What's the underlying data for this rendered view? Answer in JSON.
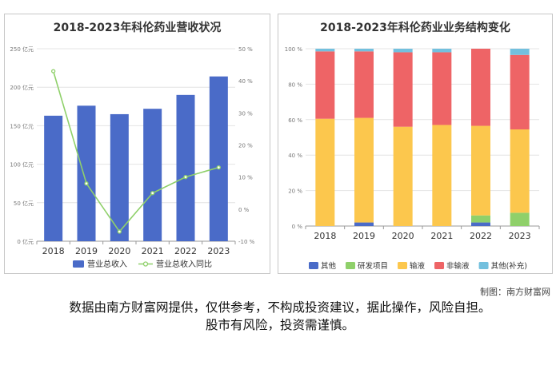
{
  "charts": {
    "revenue": {
      "title": "2018-2023年科伦药业营收状况"
    },
    "structure": {
      "title": "2018-2023年科伦药业业务结构变化"
    }
  },
  "chart_data": [
    {
      "type": "bar",
      "title": "2018-2023年科伦药业营收状况",
      "categories": [
        "2018",
        "2019",
        "2020",
        "2021",
        "2022",
        "2023"
      ],
      "series": [
        {
          "name": "营业总收入",
          "type": "bar",
          "axis": "left",
          "color": "#4a6bc8",
          "values": [
            163,
            176,
            165,
            172,
            190,
            214
          ]
        },
        {
          "name": "营业总收入同比",
          "type": "line",
          "axis": "right",
          "color": "#8fd06a",
          "values": [
            43,
            8,
            -7,
            5,
            10,
            13
          ]
        }
      ],
      "y_left": {
        "ticks": [
          "0 亿元",
          "50 亿元",
          "100 亿元",
          "150 亿元",
          "200 亿元",
          "250 亿元"
        ],
        "range": [
          0,
          250
        ]
      },
      "y_right": {
        "ticks": [
          "-10 %",
          "0 %",
          "10 %",
          "20 %",
          "30 %",
          "40 %",
          "50 %"
        ],
        "range": [
          -10,
          50
        ]
      },
      "grid": true,
      "legend": "bottom"
    },
    {
      "type": "bar",
      "stacked": true,
      "title": "2018-2023年科伦药业业务结构变化",
      "categories": [
        "2018",
        "2019",
        "2020",
        "2021",
        "2022",
        "2023"
      ],
      "series": [
        {
          "name": "其他",
          "color": "#4a6bc8",
          "values": [
            0,
            2,
            0,
            0,
            2,
            0
          ]
        },
        {
          "name": "研发项目",
          "color": "#8fd06a",
          "values": [
            0,
            0,
            0,
            0,
            4,
            7.5
          ]
        },
        {
          "name": "输液",
          "color": "#fcc74d",
          "values": [
            60.5,
            59,
            56,
            57,
            50.5,
            47
          ]
        },
        {
          "name": "非输液",
          "color": "#ee6466",
          "values": [
            38,
            37.5,
            42,
            41,
            43.5,
            42
          ]
        },
        {
          "name": "其他(补充)",
          "color": "#73c0de",
          "values": [
            1.5,
            1.5,
            2,
            2,
            0,
            3.5
          ]
        }
      ],
      "y": {
        "ticks": [
          "0 %",
          "20 %",
          "40 %",
          "60 %",
          "80 %",
          "100 %"
        ],
        "range": [
          0,
          100
        ]
      },
      "grid": true,
      "legend": "bottom"
    }
  ],
  "credit": "制图：南方财富网",
  "footer": {
    "line1": "数据由南方财富网提供，仅供参考，不构成投资建议，据此操作，风险自担。",
    "line2": "股市有风险，投资需谨慎。"
  }
}
